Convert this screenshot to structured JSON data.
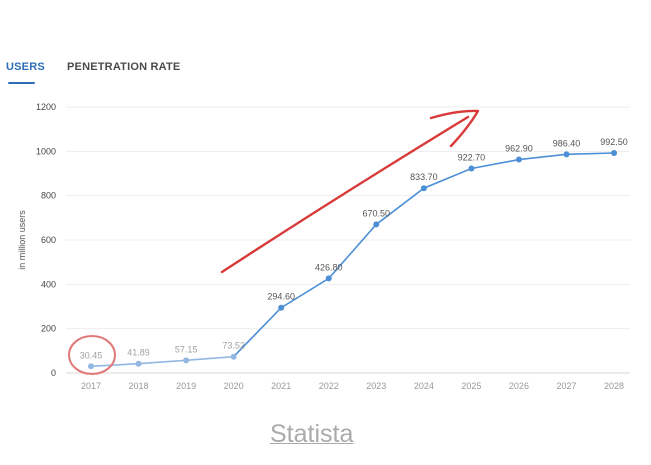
{
  "tabs": [
    {
      "label": "USERS",
      "active": true
    },
    {
      "label": "PENETRATION RATE",
      "active": false
    }
  ],
  "source_link": "Statista",
  "colors": {
    "accent": "#2d6db8",
    "line_historic": "#93b7e3",
    "line_forecast": "#4c8fd6",
    "annotation": "#d83a3a",
    "grid": "#eeeeee"
  },
  "chart_data": {
    "type": "line",
    "categories": [
      "2017",
      "2018",
      "2019",
      "2020",
      "2021",
      "2022",
      "2023",
      "2024",
      "2025",
      "2026",
      "2027",
      "2028"
    ],
    "values": [
      30.45,
      41.89,
      57.15,
      73.52,
      294.6,
      426.8,
      670.5,
      833.7,
      922.7,
      962.9,
      986.4,
      992.5
    ],
    "data_labels": [
      "30.45",
      "41.89",
      "57.15",
      "73.52",
      "294.60",
      "426.80",
      "670.50",
      "833.70",
      "922.70",
      "962.90",
      "986.40",
      "992.50"
    ],
    "yticks": [
      "0",
      "200",
      "400",
      "600",
      "800",
      "1000",
      "1200"
    ],
    "ylabel": "in million users",
    "ylim": [
      0,
      1200
    ],
    "grid": true,
    "historic_count": 4
  }
}
